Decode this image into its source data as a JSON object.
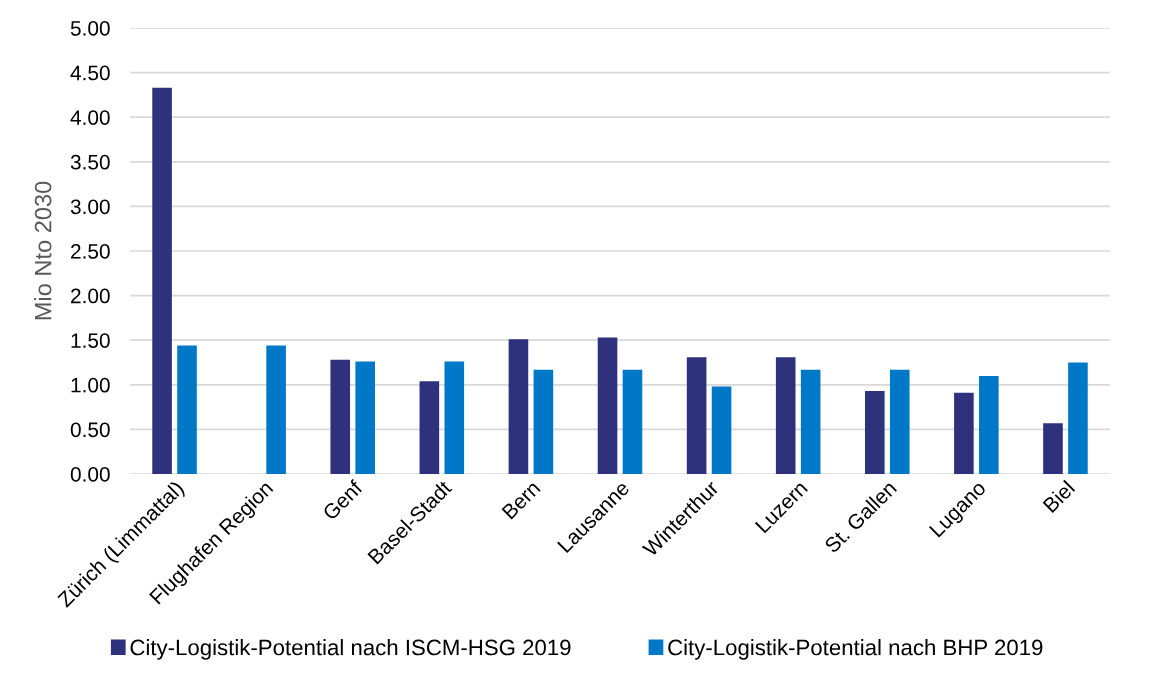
{
  "chart_data": {
    "type": "bar",
    "ylabel": "Mio Nto 2030",
    "categories": [
      "Zürich (Limmattal)",
      "Flughafen Region",
      "Genf",
      "Basel-Stadt",
      "Bern",
      "Lausanne",
      "Winterthur",
      "Luzern",
      "St. Gallen",
      "Lugano",
      "Biel"
    ],
    "series": [
      {
        "name": "City-Logistik-Potential nach ISCM-HSG 2019",
        "color": "#2e317c",
        "values": [
          4.33,
          null,
          1.28,
          1.04,
          1.51,
          1.53,
          1.31,
          1.31,
          0.93,
          0.91,
          0.57
        ]
      },
      {
        "name": "City-Logistik-Potential nach BHP 2019",
        "color": "#0078c8",
        "values": [
          1.44,
          1.44,
          1.26,
          1.26,
          1.17,
          1.17,
          0.98,
          1.17,
          1.17,
          1.1,
          1.25
        ]
      }
    ],
    "ylim": [
      0,
      5
    ],
    "yticks": [
      {
        "value": 0,
        "label": "0.00"
      },
      {
        "value": 0.5,
        "label": "0.50"
      },
      {
        "value": 1,
        "label": "1.00"
      },
      {
        "value": 1.5,
        "label": "1.50"
      },
      {
        "value": 2,
        "label": "2.00"
      },
      {
        "value": 2.5,
        "label": "2.50"
      },
      {
        "value": 3,
        "label": "3.00"
      },
      {
        "value": 3.5,
        "label": "3.50"
      },
      {
        "value": 4,
        "label": "4.00"
      },
      {
        "value": 4.5,
        "label": "4.50"
      },
      {
        "value": 5,
        "label": "5.00"
      }
    ],
    "grid": "y",
    "legend": "bottom"
  }
}
